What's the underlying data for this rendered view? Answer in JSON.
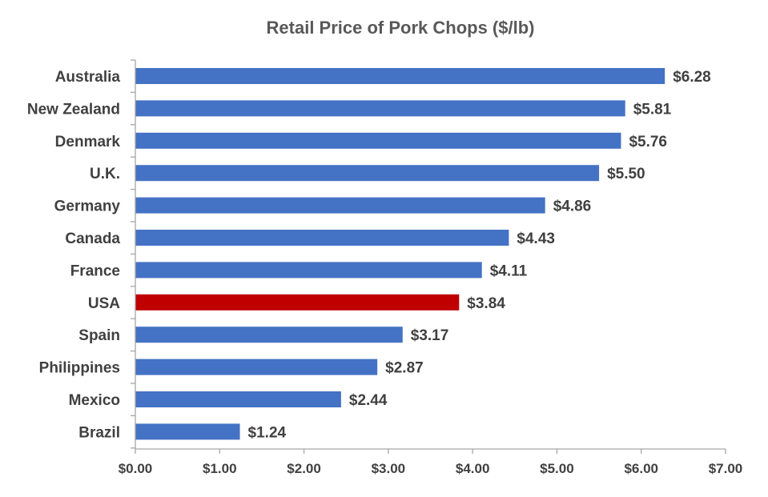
{
  "chart_data": {
    "type": "bar",
    "orientation": "horizontal",
    "title": "Retail Price of Pork Chops ($/lb)",
    "xlabel": "",
    "ylabel": "",
    "categories": [
      "Australia",
      "New Zealand",
      "Denmark",
      "U.K.",
      "Germany",
      "Canada",
      "France",
      "USA",
      "Spain",
      "Philippines",
      "Mexico",
      "Brazil"
    ],
    "values": [
      6.28,
      5.81,
      5.76,
      5.5,
      4.86,
      4.43,
      4.11,
      3.84,
      3.17,
      2.87,
      2.44,
      1.24
    ],
    "value_labels": [
      "$6.28",
      "$5.81",
      "$5.76",
      "$5.50",
      "$4.86",
      "$4.43",
      "$4.11",
      "$3.84",
      "$3.17",
      "$2.87",
      "$2.44",
      "$1.24"
    ],
    "xlim": [
      0,
      7
    ],
    "xticks": [
      0,
      1,
      2,
      3,
      4,
      5,
      6,
      7
    ],
    "xtick_labels": [
      "$0.00",
      "$1.00",
      "$2.00",
      "$3.00",
      "$4.00",
      "$5.00",
      "$6.00",
      "$7.00"
    ],
    "grid": false,
    "legend": "none",
    "colors": {
      "default_bar": "#4472C4",
      "highlight_bar": "#C00000",
      "axis": "#A6A6A6"
    },
    "highlight_category": "USA"
  }
}
